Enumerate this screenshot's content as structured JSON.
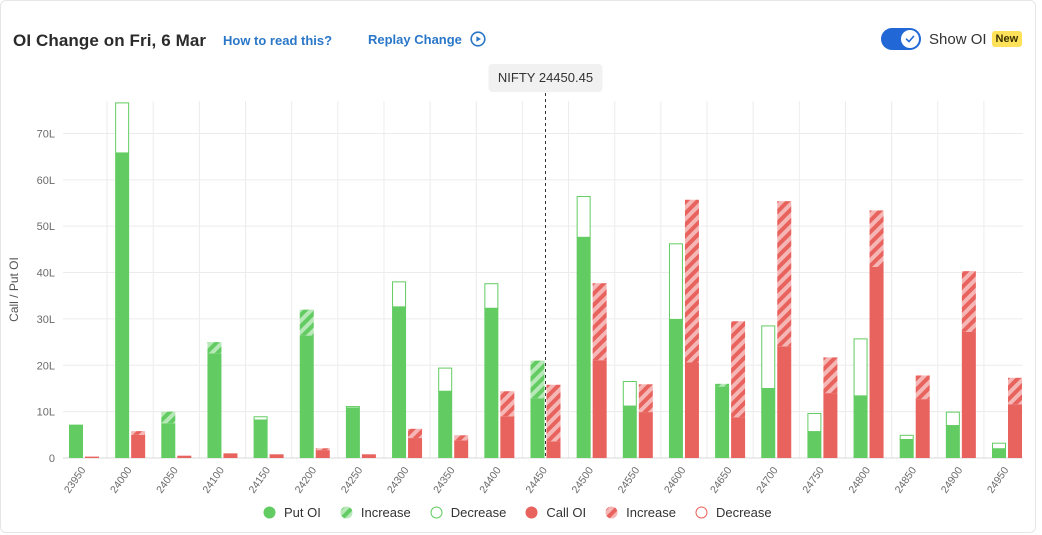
{
  "header": {
    "title": "OI Change on Fri, 6 Mar",
    "how_link": "How to read this?",
    "replay_label": "Replay Change",
    "toggle_label": "Show OI",
    "toggle_on": true,
    "badge": "New"
  },
  "colors": {
    "put": "#62cc62",
    "put_light": "#a7e3a7",
    "call": "#e8625e",
    "call_light": "#f2a7a4",
    "grid": "#ececec",
    "accent": "#2168d6"
  },
  "chart_data": {
    "type": "bar",
    "ylabel": "Call / Put OI",
    "ylim": [
      0,
      77
    ],
    "yticks": [
      {
        "value": 0,
        "label": "0"
      },
      {
        "value": 10,
        "label": "10L"
      },
      {
        "value": 20,
        "label": "20L"
      },
      {
        "value": 30,
        "label": "30L"
      },
      {
        "value": 40,
        "label": "40L"
      },
      {
        "value": 50,
        "label": "50L"
      },
      {
        "value": 60,
        "label": "60L"
      },
      {
        "value": 70,
        "label": "70L"
      }
    ],
    "spot_label": "NIFTY 24450.45",
    "spot_strike": "24450",
    "categories": [
      "23950",
      "24000",
      "24050",
      "24100",
      "24150",
      "24200",
      "24250",
      "24300",
      "24350",
      "24400",
      "24450",
      "24500",
      "24550",
      "24600",
      "24650",
      "24700",
      "24750",
      "24800",
      "24850",
      "24900",
      "24950"
    ],
    "put": {
      "current": [
        7.2,
        65.8,
        10.0,
        25.0,
        8.2,
        32.0,
        10.8,
        32.6,
        14.4,
        32.3,
        21.0,
        47.6,
        11.2,
        29.9,
        16.0,
        15.0,
        5.7,
        13.4,
        4.0,
        7.0,
        2.0
      ],
      "previous": [
        7.2,
        76.7,
        7.5,
        22.6,
        9.0,
        26.4,
        11.2,
        38.1,
        19.5,
        37.7,
        12.9,
        56.5,
        16.6,
        46.3,
        15.4,
        28.6,
        9.7,
        25.8,
        5.0,
        10.0,
        3.3
      ]
    },
    "call": {
      "current": [
        0.3,
        5.8,
        0.5,
        1.0,
        0.8,
        2.1,
        0.8,
        6.3,
        4.9,
        14.4,
        15.8,
        37.7,
        15.9,
        55.7,
        29.5,
        55.4,
        21.7,
        53.4,
        17.8,
        40.3,
        17.3
      ],
      "previous": [
        0.3,
        5.0,
        0.5,
        1.0,
        0.8,
        1.7,
        0.8,
        4.3,
        3.8,
        9.0,
        3.6,
        21.1,
        9.9,
        20.6,
        8.8,
        24.1,
        14.0,
        41.2,
        12.7,
        27.2,
        11.6
      ]
    },
    "legend": [
      "Put OI",
      "Increase",
      "Decrease",
      "Call OI",
      "Increase",
      "Decrease"
    ]
  }
}
